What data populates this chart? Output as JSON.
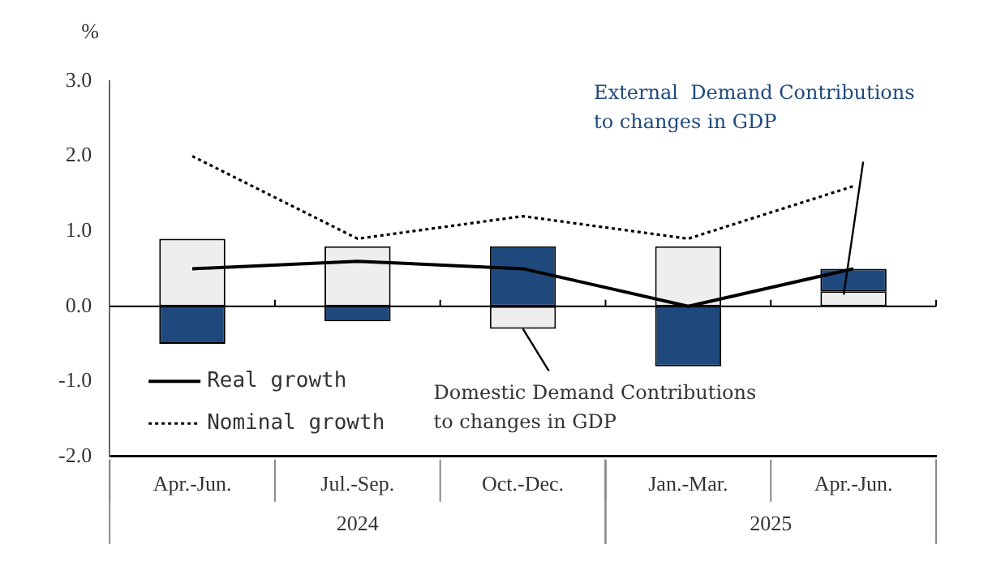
{
  "chart_data": {
    "type": "bar",
    "ylabel": "%",
    "stacked": true,
    "grid": false,
    "legend": "bottom left",
    "categories": [
      "Apr.-Jun.",
      "Jul.-Sep.",
      "Oct.-Dec.",
      "Jan.-Mar.",
      "Apr.-Jun."
    ],
    "ylim": [
      -2,
      3
    ],
    "yticks": [
      {
        "value": -2,
        "label": "-2.0"
      },
      {
        "value": -1,
        "label": "-1.0"
      },
      {
        "value": 0,
        "label": "0.0"
      },
      {
        "value": 1,
        "label": "1.0"
      },
      {
        "value": 2,
        "label": "2.0"
      },
      {
        "value": 3,
        "label": "3.0"
      }
    ],
    "series": [
      {
        "name": "Domestic Demand Contributions to changes in GDP",
        "color": "#eeeeee",
        "values": [
          0.9,
          0.8,
          -0.3,
          0.8,
          0.2
        ]
      },
      {
        "name": "External  Demand Contributions to changes in GDP",
        "color": "#1f497d",
        "values": [
          -0.5,
          -0.2,
          0.8,
          -0.8,
          0.3
        ]
      },
      {
        "name": "Real growth",
        "type": "line",
        "color": "#000000",
        "line_style": "solid",
        "marker": "none",
        "values": [
          0.5,
          0.6,
          0.5,
          0.0,
          0.5
        ]
      },
      {
        "name": "Nominal growth",
        "type": "line",
        "color": "#000000",
        "line_style": "dotted",
        "marker": "none",
        "values": [
          2.0,
          0.9,
          1.2,
          0.9,
          1.6
        ]
      }
    ],
    "ref_lines": [
      {
        "axis": "y",
        "value": 0
      }
    ],
    "annotations": [
      "2024",
      "2025"
    ]
  }
}
